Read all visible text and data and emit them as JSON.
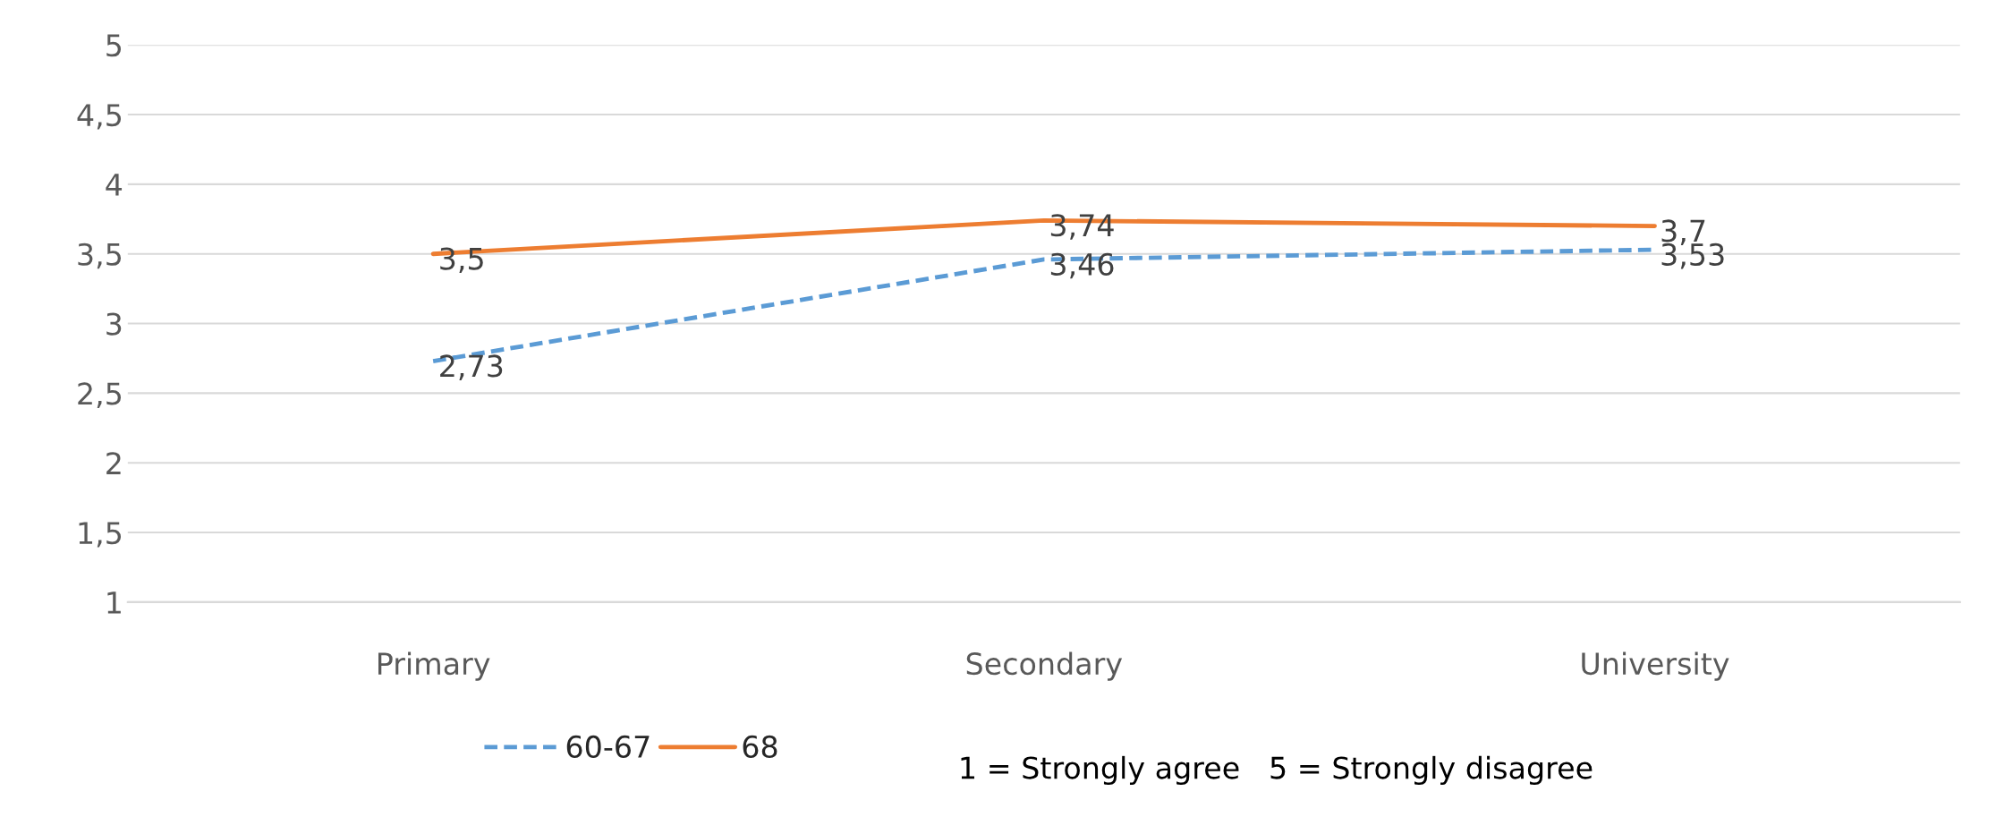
{
  "chart_data": {
    "type": "line",
    "categories": [
      "Primary",
      "Secondary",
      "University"
    ],
    "series": [
      {
        "name": "60-67",
        "color": "#5b9bd5",
        "line_style": "dashed",
        "values": [
          2.73,
          3.46,
          3.53
        ],
        "value_labels": [
          "2,73",
          "3,46",
          "3,53"
        ]
      },
      {
        "name": "68",
        "color": "#ed7d31",
        "line_style": "solid",
        "values": [
          3.5,
          3.74,
          3.7
        ],
        "value_labels": [
          "3,5",
          "3,74",
          "3,7"
        ]
      }
    ],
    "ylim": [
      1,
      5
    ],
    "yticks": [
      1,
      {
        "value": 1.5,
        "label": "1,5"
      },
      2,
      {
        "value": 2.5,
        "label": "2,5"
      },
      3,
      {
        "value": 3.5,
        "label": "3,5"
      },
      4,
      {
        "value": 4.5,
        "label": "4,5"
      },
      5
    ],
    "grid": "y",
    "legend": "bottom",
    "marker": "none",
    "annotations": [
      "1 = Strongly agree   5 = Strongly disagree"
    ]
  }
}
